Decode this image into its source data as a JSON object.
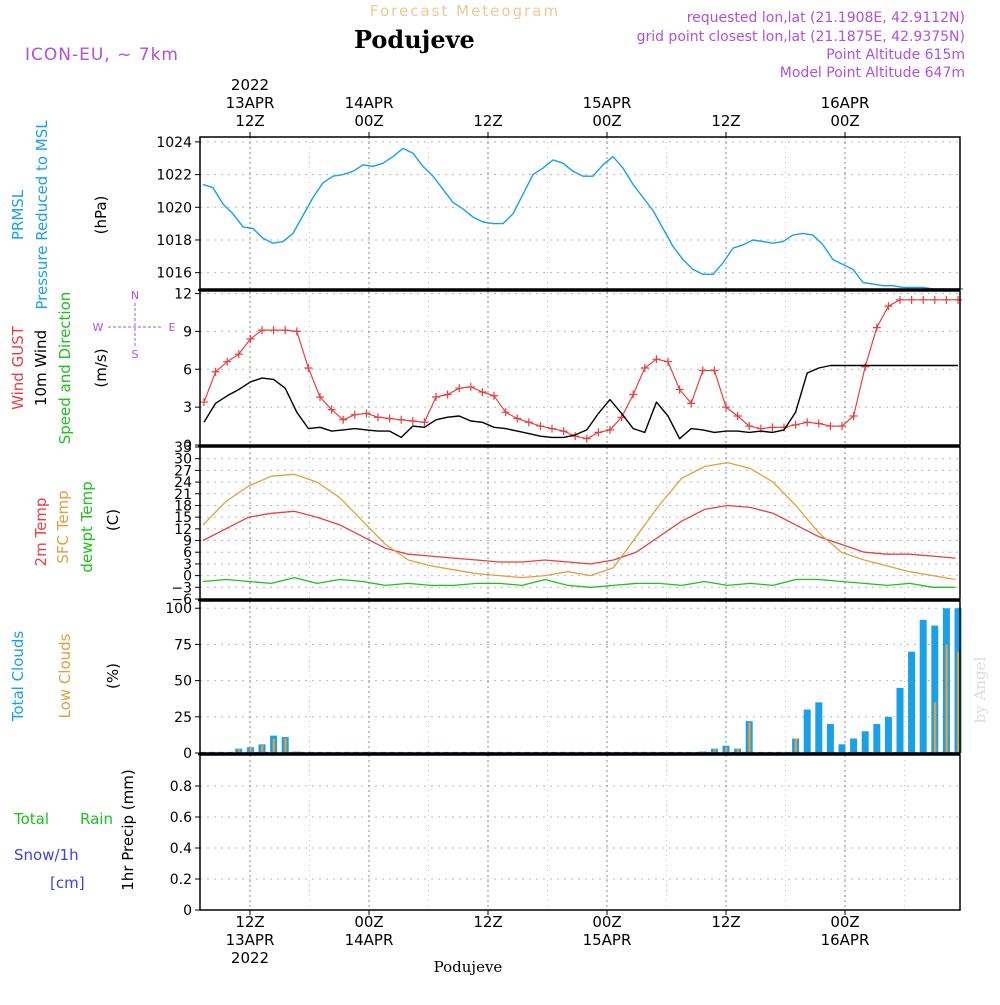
{
  "header": {
    "product": "Forecast Meteogram",
    "model": "ICON-EU, ~ 7km",
    "station": "Podujeve",
    "requested": "requested lon,lat (21.1908E, 42.9112N)",
    "gridpoint": "grid point closest lon,lat (21.1875E, 42.9375N)",
    "point_alt": "Point Altitude 615m",
    "model_alt": "Model Point Altitude 647m"
  },
  "footer": {
    "station": "Podujeve",
    "credit": "by Angel"
  },
  "colors": {
    "pressure": "#1aa0e6",
    "gust": "#e84040",
    "wind": "#000000",
    "temp2m": "#e84040",
    "sfc": "#e0a040",
    "dewpt": "#20c020",
    "total_clouds": "#1aa0e6",
    "low_clouds": "#d8a048",
    "precip_label": "#20c020",
    "snow_label": "#4040e0",
    "compass": "#b050e0"
  },
  "time_axis": {
    "top": [
      {
        "t": 12,
        "lines": [
          "2022",
          "13APR",
          "12Z"
        ]
      },
      {
        "t": 24,
        "lines": [
          "14APR",
          "00Z"
        ]
      },
      {
        "t": 36,
        "lines": [
          "12Z"
        ]
      },
      {
        "t": 48,
        "lines": [
          "15APR",
          "00Z"
        ]
      },
      {
        "t": 60,
        "lines": [
          "12Z"
        ]
      },
      {
        "t": 72,
        "lines": [
          "16APR",
          "00Z"
        ]
      }
    ],
    "bottom": [
      {
        "t": 12,
        "lines": [
          "12Z",
          "13APR",
          "2022"
        ]
      },
      {
        "t": 24,
        "lines": [
          "00Z",
          "14APR"
        ]
      },
      {
        "t": 36,
        "lines": [
          "12Z"
        ]
      },
      {
        "t": 48,
        "lines": [
          "00Z",
          "15APR"
        ]
      },
      {
        "t": 60,
        "lines": [
          "12Z"
        ]
      },
      {
        "t": 72,
        "lines": [
          "00Z",
          "16APR"
        ]
      }
    ]
  },
  "chart_data": [
    {
      "type": "line",
      "labels": [
        "PRMSL",
        "Pressure Reduced to MSL",
        "(hPa)"
      ],
      "ylim": [
        1015,
        1024.3
      ],
      "yticks": [
        1016,
        1018,
        1020,
        1022,
        1024
      ],
      "series": [
        {
          "name": "PRMSL",
          "x": [
            0,
            1,
            2,
            3,
            4,
            5,
            6,
            7,
            8,
            9,
            10,
            11,
            12,
            13,
            14,
            15,
            16,
            17,
            18,
            19,
            20,
            21,
            22,
            23,
            24,
            25,
            26,
            27,
            28,
            29,
            30,
            31,
            32,
            33,
            34,
            35,
            36,
            37,
            38,
            39,
            40,
            41,
            42,
            43,
            44,
            45,
            46,
            47,
            48,
            49,
            50,
            51,
            52,
            53,
            54,
            55,
            56,
            57,
            58,
            59,
            60,
            61,
            62,
            63,
            64,
            65,
            66,
            67,
            68,
            69,
            70,
            71,
            72,
            73,
            74,
            75,
            76
          ],
          "y": [
            1021.4,
            1021.2,
            1020.2,
            1019.6,
            1018.8,
            1018.7,
            1018.1,
            1017.8,
            1017.9,
            1018.4,
            1019.5,
            1020.6,
            1021.5,
            1021.9,
            1022.0,
            1022.2,
            1022.6,
            1022.5,
            1022.7,
            1023.1,
            1023.6,
            1023.3,
            1022.5,
            1021.9,
            1021.1,
            1020.3,
            1019.9,
            1019.4,
            1019.1,
            1019.0,
            1019.0,
            1019.6,
            1020.8,
            1022.0,
            1022.4,
            1022.9,
            1022.7,
            1022.2,
            1021.9,
            1021.9,
            1022.6,
            1023.1,
            1022.4,
            1021.4,
            1020.6,
            1019.8,
            1018.7,
            1017.6,
            1016.8,
            1016.2,
            1015.9,
            1015.9,
            1016.6,
            1017.5,
            1017.7,
            1018.0,
            1017.9,
            1017.8,
            1017.9,
            1018.3,
            1018.4,
            1018.3,
            1017.7,
            1016.8,
            1016.5,
            1016.2,
            1015.4,
            1015.3,
            1015.2,
            1015.2,
            1015.1,
            1015.1,
            1015.1,
            1015.0,
            1015.0,
            1015.0,
            1015.0
          ]
        }
      ]
    },
    {
      "type": "line",
      "labels": [
        "Wind GUST",
        "10m Wind",
        "Speed and Direction",
        "(m/s)"
      ],
      "compass": {
        "n": "N",
        "s": "S",
        "w": "W",
        "e": "E"
      },
      "ylim": [
        0,
        12.2
      ],
      "yticks": [
        0,
        3,
        6,
        9,
        12
      ],
      "series": [
        {
          "name": "Wind GUST",
          "x": [
            0,
            1,
            2,
            3,
            4,
            5,
            6,
            7,
            8,
            9,
            10,
            11,
            12,
            13,
            14,
            15,
            16,
            17,
            18,
            19,
            20,
            21,
            22,
            23,
            24,
            25,
            26,
            27,
            28,
            29,
            30,
            31,
            32,
            33,
            34,
            35,
            36,
            37,
            38,
            39,
            40,
            41,
            42,
            43,
            44,
            45,
            46,
            47,
            48,
            49,
            50,
            51,
            52,
            53,
            54,
            55,
            56,
            57,
            58,
            59,
            60,
            61,
            62,
            63,
            64,
            65
          ],
          "y": [
            3.4,
            5.8,
            6.6,
            7.2,
            8.4,
            9.1,
            9.1,
            9.1,
            9.0,
            6.1,
            3.8,
            2.8,
            2.0,
            2.4,
            2.5,
            2.2,
            2.1,
            2.0,
            1.9,
            1.8,
            3.8,
            4.0,
            4.5,
            4.6,
            4.2,
            3.9,
            2.6,
            2.1,
            1.8,
            1.5,
            1.3,
            1.1,
            0.7,
            0.5,
            1.0,
            1.2,
            2.2,
            4.0,
            6.1,
            6.8,
            6.6,
            4.4,
            3.3,
            5.9,
            5.9,
            3.0,
            2.3,
            1.5,
            1.3,
            1.4,
            1.4,
            1.6,
            1.8,
            1.7,
            1.5,
            1.5,
            2.3,
            6.2,
            9.3,
            11.0,
            11.5,
            11.5,
            11.5,
            11.5,
            11.5,
            11.5
          ]
        },
        {
          "name": "10m Wind",
          "x": [
            0,
            1,
            2,
            3,
            4,
            5,
            6,
            7,
            8,
            9,
            10,
            11,
            12,
            13,
            14,
            15,
            16,
            17,
            18,
            19,
            20,
            21,
            22,
            23,
            24,
            25,
            26,
            27,
            28,
            29,
            30,
            31,
            32,
            33,
            34,
            35,
            36,
            37,
            38,
            39,
            40,
            41,
            42,
            43,
            44,
            45,
            46,
            47,
            48,
            49,
            50,
            51,
            52,
            53,
            54,
            55,
            56,
            57,
            58,
            59,
            60,
            61,
            62,
            63,
            64,
            65
          ],
          "y": [
            1.8,
            3.3,
            3.9,
            4.4,
            5.0,
            5.3,
            5.2,
            4.5,
            2.6,
            1.3,
            1.4,
            1.1,
            1.2,
            1.3,
            1.2,
            1.1,
            1.1,
            0.6,
            1.5,
            1.4,
            2.0,
            2.2,
            2.3,
            1.9,
            1.8,
            1.4,
            1.3,
            1.1,
            0.9,
            0.7,
            0.6,
            0.6,
            0.8,
            1.2,
            2.5,
            3.6,
            2.5,
            1.3,
            1.0,
            3.4,
            2.3,
            0.5,
            1.3,
            1.2,
            1.0,
            1.1,
            1.1,
            1.0,
            1.1,
            1.0,
            1.2,
            2.6,
            5.7,
            6.1,
            6.3,
            6.3,
            6.3,
            6.3,
            6.3,
            6.3,
            6.3,
            6.3,
            6.3,
            6.3,
            6.3,
            6.3
          ]
        }
      ]
    },
    {
      "type": "line",
      "labels": [
        "2m Temp",
        "SFC Temp",
        "dewpt Temp",
        "(C)"
      ],
      "ylim": [
        -6,
        33
      ],
      "yticks": [
        -6,
        -3,
        0,
        3,
        6,
        9,
        12,
        15,
        18,
        21,
        24,
        27,
        30,
        33
      ],
      "series": [
        {
          "name": "2m Temp",
          "x": [
            0,
            3,
            6,
            9,
            12,
            15,
            18,
            21,
            24,
            27,
            30,
            33,
            36,
            39,
            42,
            45,
            48,
            51,
            54,
            57,
            60,
            63,
            66,
            69,
            72,
            75,
            78,
            81,
            84,
            87,
            90,
            93,
            96,
            99
          ],
          "y": [
            9,
            12,
            15,
            16,
            16.5,
            15,
            13,
            10,
            7,
            5.5,
            5,
            4.5,
            4,
            3.5,
            3.5,
            4,
            3.5,
            3,
            4,
            6,
            10,
            14,
            17,
            18,
            17.5,
            16,
            13,
            10,
            8,
            6,
            5.5,
            5.5,
            5,
            4.5
          ]
        },
        {
          "name": "SFC Temp",
          "x": [
            0,
            3,
            6,
            9,
            12,
            15,
            18,
            21,
            24,
            27,
            30,
            33,
            36,
            39,
            42,
            45,
            48,
            51,
            54,
            57,
            60,
            63,
            66,
            69,
            72,
            75,
            78,
            81,
            84,
            87,
            90,
            93,
            96,
            99
          ],
          "y": [
            13,
            19,
            23,
            25.5,
            26,
            24,
            20,
            14,
            8,
            4,
            2.5,
            1.5,
            0.5,
            0,
            -0.5,
            0,
            1,
            0,
            2,
            10,
            18,
            25,
            28,
            29,
            27.5,
            24,
            18,
            11,
            6,
            4,
            2.5,
            1,
            0,
            -1
          ]
        },
        {
          "name": "dewpt Temp",
          "x": [
            0,
            3,
            6,
            9,
            12,
            15,
            18,
            21,
            24,
            27,
            30,
            33,
            36,
            39,
            42,
            45,
            48,
            51,
            54,
            57,
            60,
            63,
            66,
            69,
            72,
            75,
            78,
            81,
            84,
            87,
            90,
            93,
            96,
            99
          ],
          "y": [
            -1.5,
            -1,
            -1.5,
            -2,
            -0.5,
            -2,
            -1,
            -1.5,
            -2.5,
            -2,
            -2.5,
            -2.5,
            -2,
            -2,
            -2.5,
            -1,
            -2.5,
            -3,
            -2.5,
            -2,
            -2,
            -2.5,
            -1.5,
            -2.5,
            -2,
            -2.5,
            -1,
            -1,
            -1.5,
            -2,
            -2.5,
            -2,
            -3,
            -3
          ]
        }
      ]
    },
    {
      "type": "bar",
      "labels": [
        "Total Clouds",
        "Low Clouds",
        "(%)"
      ],
      "ylim": [
        0,
        105
      ],
      "yticks": [
        0,
        25,
        50,
        75,
        100
      ],
      "series": [
        {
          "name": "Total Clouds",
          "x": [
            3,
            4,
            5,
            6,
            7,
            8,
            43,
            44,
            45,
            46,
            47,
            51,
            52,
            53,
            54,
            55,
            56,
            57,
            58,
            59,
            60,
            61,
            62,
            63,
            64,
            65
          ],
          "y": [
            3,
            4,
            6,
            12,
            11,
            1,
            1,
            3,
            5,
            3,
            22,
            10,
            30,
            35,
            20,
            6,
            10,
            15,
            20,
            25,
            45,
            70,
            92,
            88,
            100,
            100
          ]
        },
        {
          "name": "Low Clouds",
          "x": [
            3,
            4,
            5,
            6,
            7,
            8,
            43,
            44,
            45,
            46,
            47,
            51,
            52,
            53,
            54,
            55,
            56,
            57,
            58,
            59,
            60,
            61,
            62,
            63,
            64,
            65
          ],
          "y": [
            3,
            4,
            6,
            10,
            10,
            1,
            1,
            3,
            4,
            3,
            21,
            10,
            0,
            0,
            0,
            0,
            0,
            0,
            0,
            0,
            0,
            0,
            0,
            35,
            75,
            70
          ]
        }
      ]
    },
    {
      "type": "bar",
      "labels": [
        "Total",
        "Rain",
        "Snow/1h",
        "[cm]",
        "1hr Precip (mm)"
      ],
      "ylim": [
        0,
        1.0
      ],
      "yticks": [
        0,
        0.2,
        0.4,
        0.6,
        0.8
      ],
      "series": [
        {
          "name": "Total Rain",
          "x": [],
          "y": []
        }
      ]
    }
  ]
}
